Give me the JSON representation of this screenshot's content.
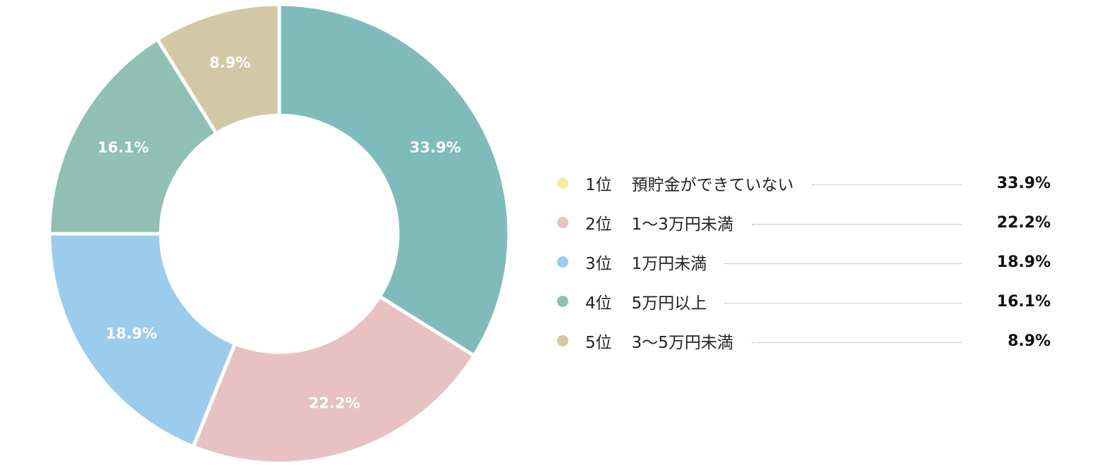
{
  "chart_data": {
    "type": "pie",
    "donut": true,
    "title": "",
    "legend_position": "right",
    "slices": [
      {
        "rank": "1位",
        "label": "預貯金ができていない",
        "value": 33.9,
        "value_label": "33.9%",
        "color": "#80BBBB",
        "legend_color": "#F6EE9A"
      },
      {
        "rank": "2位",
        "label": "1〜3万円未満",
        "value": 22.2,
        "value_label": "22.2%",
        "color": "#E8C2C2",
        "legend_color": "#E8C2C2"
      },
      {
        "rank": "3位",
        "label": "1万円未満",
        "value": 18.9,
        "value_label": "18.9%",
        "color": "#9BCCEE",
        "legend_color": "#9BCCEE"
      },
      {
        "rank": "4位",
        "label": "5万円以上",
        "value": 16.1,
        "value_label": "16.1%",
        "color": "#90C0B3",
        "legend_color": "#90C0B3"
      },
      {
        "rank": "5位",
        "label": "3〜5万円未満",
        "value": 8.9,
        "value_label": "8.9%",
        "color": "#D3C8A6",
        "legend_color": "#D3C8A6"
      }
    ]
  }
}
